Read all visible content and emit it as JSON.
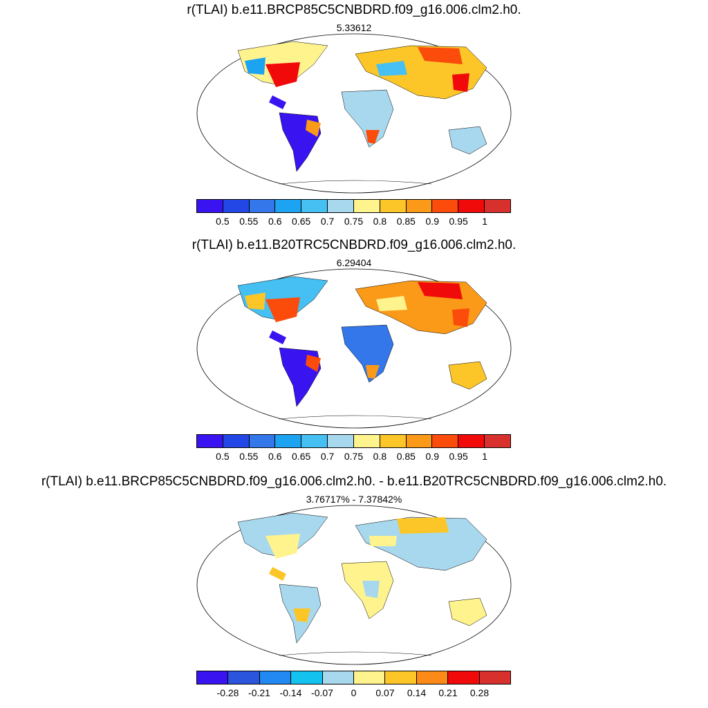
{
  "colors": {
    "scale": [
      "#3a14f0",
      "#2346e6",
      "#3377ea",
      "#1ca3f2",
      "#46c0f2",
      "#a8d8ee",
      "#fff38e",
      "#fcc628",
      "#fb9a18",
      "#fb4c0c",
      "#f00a0a",
      "#d7302d"
    ],
    "diff_scale": [
      "#3a14f0",
      "#2b55dc",
      "#2288f2",
      "#14c2f0",
      "#a8d8ee",
      "#fff38e",
      "#fcc628",
      "#fb8a18",
      "#f00a0a",
      "#d7302d"
    ]
  },
  "panels": [
    {
      "title": "r(TLAI) b.e11.BRCP85C5CNBDRD.f09_g16.006.clm2.h0.",
      "subtitle": "5.33612",
      "colorbar_ticks": [
        "0.5",
        "0.55",
        "0.6",
        "0.65",
        "0.7",
        "0.75",
        "0.8",
        "0.85",
        "0.9",
        "0.95",
        "1"
      ]
    },
    {
      "title": "r(TLAI) b.e11.B20TRC5CNBDRD.f09_g16.006.clm2.h0.",
      "subtitle": "6.29404",
      "colorbar_ticks": [
        "0.5",
        "0.55",
        "0.6",
        "0.65",
        "0.7",
        "0.75",
        "0.8",
        "0.85",
        "0.9",
        "0.95",
        "1"
      ]
    },
    {
      "title": "r(TLAI) b.e11.BRCP85C5CNBDRD.f09_g16.006.clm2.h0. - b.e11.B20TRC5CNBDRD.f09_g16.006.clm2.h0.",
      "subtitle": "3.76717% - 7.37842%",
      "colorbar_ticks": [
        "-0.28",
        "-0.21",
        "-0.14",
        "-0.07",
        "0",
        "0.07",
        "0.14",
        "0.21",
        "0.28"
      ]
    }
  ]
}
